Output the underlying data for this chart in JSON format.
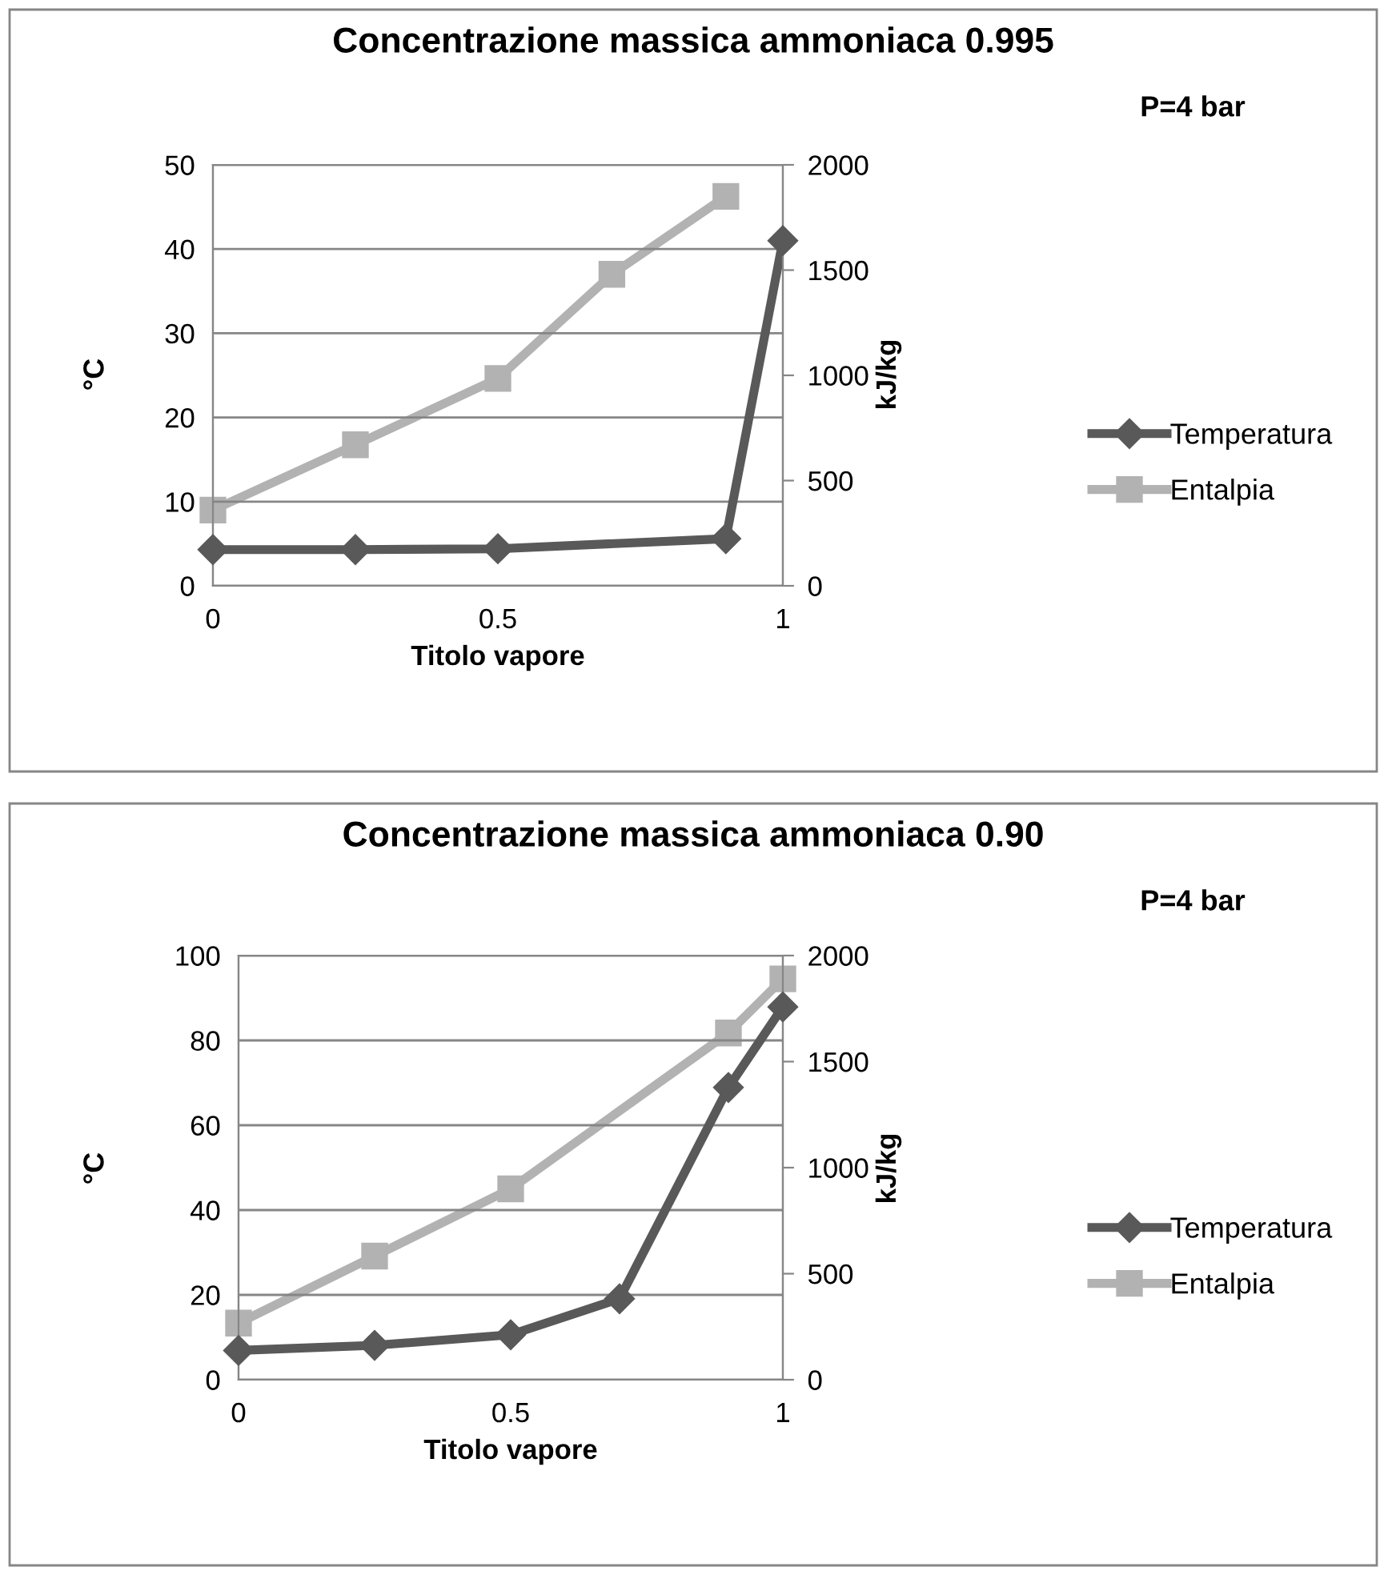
{
  "chart_data": [
    {
      "type": "line",
      "title": "Concentrazione massica ammoniaca 0.995",
      "xlabel": "Titolo vapore",
      "ylabel": "°C",
      "y2label": "kJ/kg",
      "xlim": [
        0,
        1
      ],
      "xticks": [
        0,
        0.5,
        1
      ],
      "ylim": [
        0,
        50
      ],
      "yticks": [
        0,
        10,
        20,
        30,
        40,
        50
      ],
      "y2lim": [
        0,
        2000
      ],
      "y2ticks": [
        0,
        500,
        1000,
        1500,
        2000
      ],
      "grid": "y",
      "legend": "right",
      "annotations": [
        "P=4 bar"
      ],
      "series": [
        {
          "name": "Temperatura",
          "color": "#595959",
          "marker": "diamond",
          "x": [
            0,
            0.25,
            0.5,
            0.9,
            1
          ],
          "values": [
            4.3,
            4.3,
            4.4,
            5.6,
            41
          ]
        },
        {
          "name": "Entalpia",
          "color": "#b2b2b2",
          "marker": "square",
          "axis": "y2",
          "x": [
            0,
            0.25,
            0.5,
            0.7,
            0.9
          ],
          "values": [
            360,
            670,
            985,
            1480,
            1850
          ]
        }
      ]
    },
    {
      "type": "line",
      "title": "Concentrazione massica ammoniaca 0.90",
      "xlabel": "Titolo vapore",
      "ylabel": "°C",
      "y2label": "kJ/kg",
      "xlim": [
        0,
        1
      ],
      "xticks": [
        0,
        0.5,
        1
      ],
      "ylim": [
        0,
        100
      ],
      "yticks": [
        0,
        20,
        40,
        60,
        80,
        100
      ],
      "y2lim": [
        0,
        2000
      ],
      "y2ticks": [
        0,
        500,
        1000,
        1500,
        2000
      ],
      "grid": "y",
      "legend": "right",
      "annotations": [
        "P=4 bar"
      ],
      "series": [
        {
          "name": "Temperatura",
          "color": "#595959",
          "marker": "diamond",
          "x": [
            0,
            0.25,
            0.5,
            0.7,
            0.9,
            1
          ],
          "values": [
            6.9,
            8.1,
            10.6,
            19.1,
            68.9,
            87.9
          ]
        },
        {
          "name": "Entalpia",
          "color": "#b2b2b2",
          "marker": "square",
          "axis": "y2",
          "x": [
            0,
            0.25,
            0.5,
            0.9,
            1
          ],
          "values": [
            267,
            583,
            900,
            1635,
            1890
          ]
        }
      ]
    }
  ]
}
